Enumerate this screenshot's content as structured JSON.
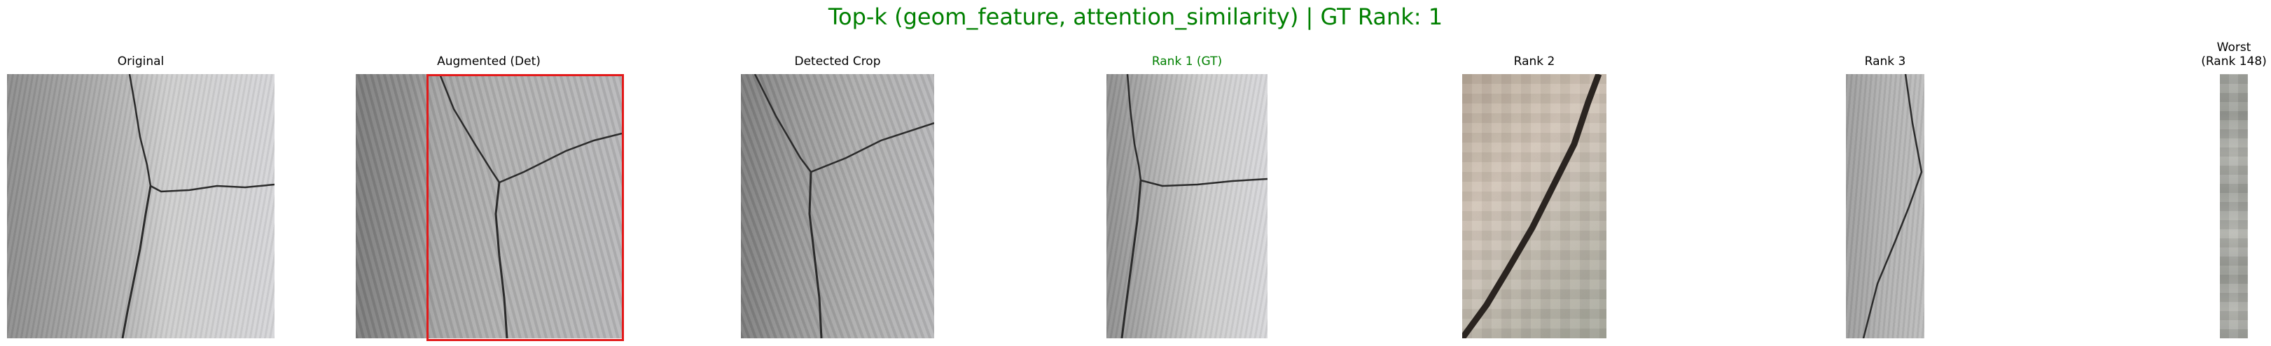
{
  "figure": {
    "title": "Top-k (geom_feature, attention_similarity) | GT Rank: 1",
    "title_color": "#008000"
  },
  "panels": [
    {
      "label": "Original",
      "color": "#000000"
    },
    {
      "label": "Augmented (Det)",
      "color": "#000000",
      "detection_box_color": "#e31a1a"
    },
    {
      "label": "Detected Crop",
      "color": "#000000"
    },
    {
      "label": "Rank 1 (GT)",
      "color": "#008000"
    },
    {
      "label": "Rank 2",
      "color": "#000000"
    },
    {
      "label": "Rank 3",
      "color": "#000000"
    },
    {
      "label": "Worst\n(Rank 148)",
      "color": "#000000"
    }
  ]
}
